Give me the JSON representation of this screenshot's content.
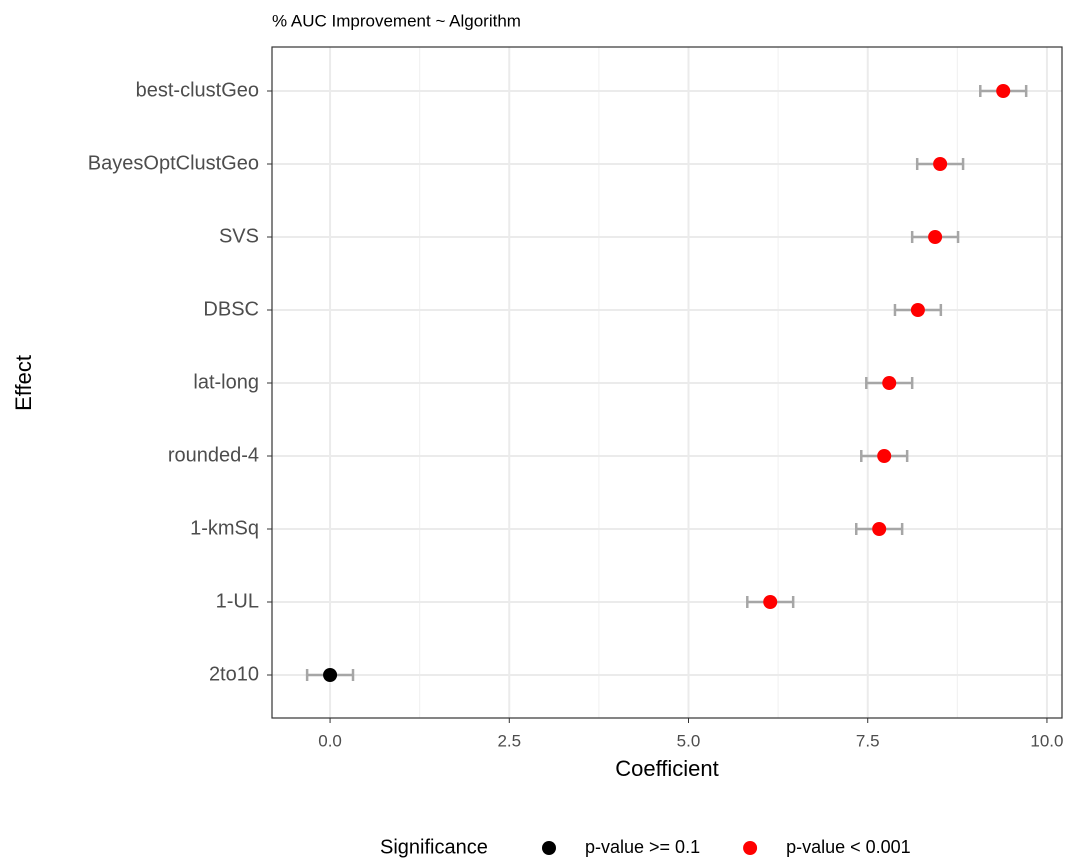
{
  "chart_data": {
    "type": "dot",
    "title": "% AUC Improvement ~ Algorithm",
    "x_label": "Coefficient",
    "y_label": "Effect",
    "legend_title": "Significance",
    "legend": "bottom",
    "grid": true,
    "categories": [
      "best-clustGeo",
      "BayesOptClustGeo",
      "SVS",
      "DBSC",
      "lat-long",
      "rounded-4",
      "1-kmSq",
      "1-UL",
      "2to10"
    ],
    "series": [
      {
        "name": "p-value >= 0.1",
        "color": "#000000",
        "values": [
          null,
          null,
          null,
          null,
          null,
          null,
          null,
          null,
          0.0
        ],
        "errors": [
          null,
          null,
          null,
          null,
          null,
          null,
          null,
          null,
          0.32
        ]
      },
      {
        "name": "p-value < 0.001",
        "color": "#ff0000",
        "values": [
          9.39,
          8.51,
          8.44,
          8.2,
          7.8,
          7.73,
          7.66,
          6.14,
          null
        ],
        "errors": [
          0.32,
          0.32,
          0.32,
          0.32,
          0.32,
          0.32,
          0.32,
          0.32,
          null
        ]
      }
    ],
    "error_color": "#a6a6a6",
    "xlim": [
      -0.81,
      10.21
    ],
    "xticks": [
      {
        "value": 0,
        "label": "0.0"
      },
      2.5,
      {
        "value": 5,
        "label": "5.0"
      },
      7.5,
      {
        "value": 10,
        "label": "10.0"
      }
    ]
  }
}
